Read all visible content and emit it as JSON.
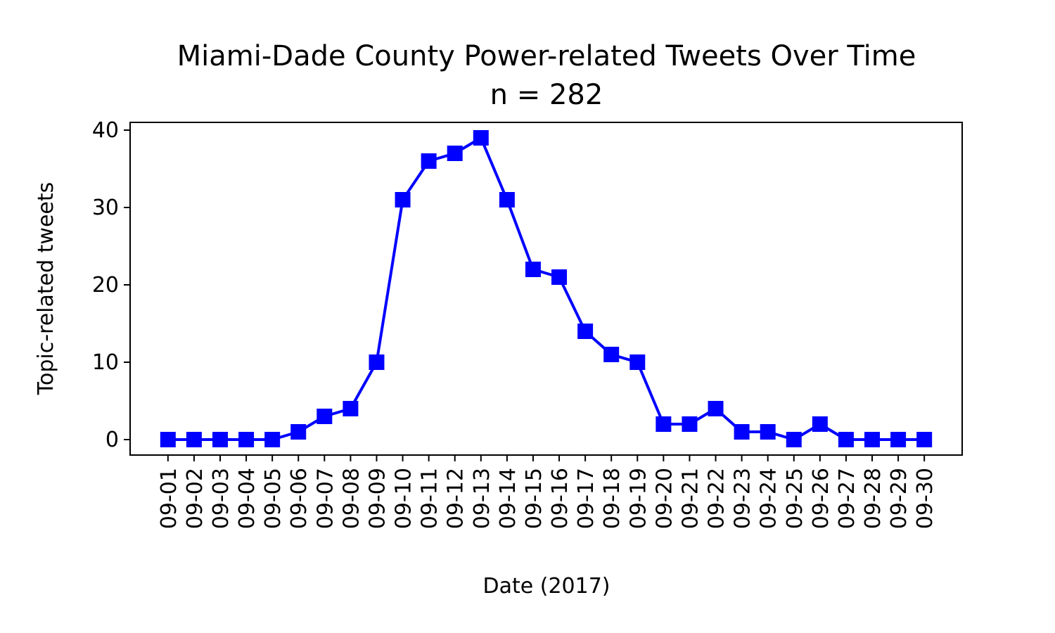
{
  "chart_data": {
    "type": "line",
    "title": "Miami-Dade County Power-related Tweets Over Time",
    "subtitle": "n = 282",
    "xlabel": "Date (2017)",
    "ylabel": "Topic-related tweets",
    "ylim": [
      -2,
      41
    ],
    "yticks": [
      0,
      10,
      20,
      30,
      40
    ],
    "grid": false,
    "marker": "square",
    "line_color": "#0000ff",
    "x": [
      "09-01",
      "09-02",
      "09-03",
      "09-04",
      "09-05",
      "09-06",
      "09-07",
      "09-08",
      "09-09",
      "09-10",
      "09-11",
      "09-12",
      "09-13",
      "09-14",
      "09-15",
      "09-16",
      "09-17",
      "09-18",
      "09-19",
      "09-20",
      "09-21",
      "09-22",
      "09-23",
      "09-24",
      "09-25",
      "09-26",
      "09-27",
      "09-28",
      "09-29",
      "09-30"
    ],
    "values": [
      0,
      0,
      0,
      0,
      0,
      1,
      3,
      4,
      10,
      31,
      36,
      37,
      39,
      31,
      22,
      21,
      14,
      11,
      10,
      2,
      2,
      4,
      1,
      1,
      0,
      2,
      0,
      0,
      0,
      0
    ]
  }
}
